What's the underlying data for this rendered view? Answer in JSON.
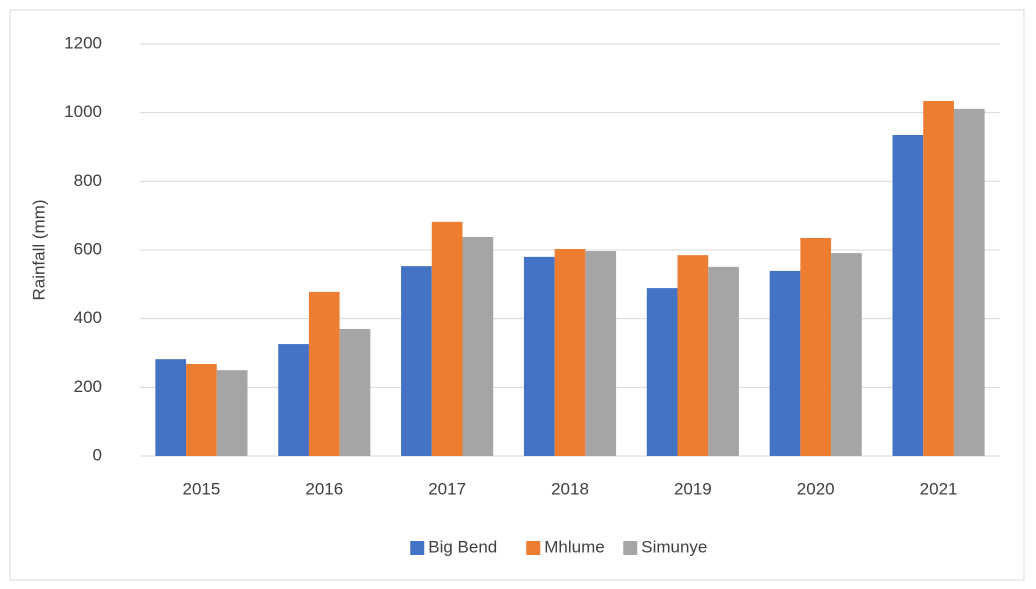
{
  "chart_data": {
    "type": "bar",
    "y_label": "Rainfall (mm)",
    "categories": [
      "2015",
      "2016",
      "2017",
      "2018",
      "2019",
      "2020",
      "2021"
    ],
    "series": [
      {
        "name": "Big Bend",
        "color": "#4472c4",
        "values": [
          282,
          326,
          553,
          580,
          489,
          539,
          935
        ]
      },
      {
        "name": "Mhlume",
        "color": "#ed7d31",
        "values": [
          268,
          478,
          682,
          603,
          585,
          635,
          1034
        ]
      },
      {
        "name": "Simunye",
        "color": "#a5a5a5",
        "values": [
          250,
          370,
          638,
          597,
          551,
          591,
          1011
        ]
      }
    ],
    "ylim": [
      0,
      1200
    ],
    "yticks": [
      0,
      200,
      400,
      600,
      800,
      1000,
      1200
    ],
    "grid": true,
    "legend": "bottom"
  }
}
